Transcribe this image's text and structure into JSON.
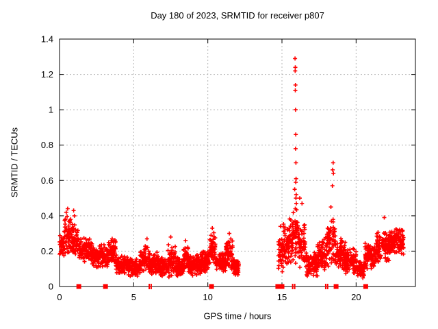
{
  "chart_data": {
    "type": "scatter",
    "title": "Day 180 of 2023, SRMTID for receiver p807",
    "xlabel": "GPS time / hours",
    "ylabel": "SRMTID / TECUs",
    "xlim": [
      0,
      24
    ],
    "ylim": [
      0,
      1.4
    ],
    "xticks": [
      0,
      5,
      10,
      15,
      20
    ],
    "ytick_values": [
      0,
      0.2,
      0.4,
      0.6,
      0.8,
      1,
      1.2,
      1.4
    ],
    "ytick_labels": [
      "0",
      "0.2",
      "0.4",
      "0.6",
      "0.8",
      "1",
      "1.2",
      "1.4"
    ],
    "grid": true,
    "legend": "none",
    "marker": "plus",
    "seed": 180,
    "colors": {
      "points": "#ff0000",
      "grid": "#b4b4b4",
      "axis": "#000000",
      "text": "#000000",
      "background": "#ffffff"
    },
    "series": [
      {
        "name": "SRMTID",
        "band_segments": [
          [
            0.0,
            0.3,
            0.15,
            0.3,
            36
          ],
          [
            0.3,
            0.8,
            0.17,
            0.4,
            60
          ],
          [
            0.8,
            1.3,
            0.16,
            0.36,
            60
          ],
          [
            1.3,
            2.2,
            0.13,
            0.28,
            108
          ],
          [
            2.2,
            3.3,
            0.1,
            0.24,
            132
          ],
          [
            3.3,
            3.8,
            0.12,
            0.27,
            60
          ],
          [
            3.8,
            4.6,
            0.06,
            0.18,
            96
          ],
          [
            4.6,
            5.4,
            0.05,
            0.16,
            96
          ],
          [
            5.4,
            6.1,
            0.07,
            0.24,
            84
          ],
          [
            6.1,
            6.7,
            0.06,
            0.2,
            72
          ],
          [
            6.7,
            7.3,
            0.05,
            0.17,
            72
          ],
          [
            7.3,
            7.8,
            0.04,
            0.25,
            60
          ],
          [
            7.8,
            8.3,
            0.05,
            0.18,
            60
          ],
          [
            8.3,
            8.7,
            0.07,
            0.24,
            48
          ],
          [
            8.7,
            9.6,
            0.06,
            0.19,
            108
          ],
          [
            9.6,
            10.1,
            0.08,
            0.21,
            60
          ],
          [
            10.1,
            10.5,
            0.12,
            0.31,
            48
          ],
          [
            10.5,
            11.2,
            0.07,
            0.2,
            84
          ],
          [
            11.2,
            11.7,
            0.08,
            0.28,
            60
          ],
          [
            11.7,
            12.1,
            0.06,
            0.17,
            48
          ],
          [
            14.75,
            15.1,
            0.05,
            0.3,
            42
          ],
          [
            15.1,
            15.5,
            0.1,
            0.38,
            48
          ],
          [
            15.5,
            16.1,
            0.12,
            0.45,
            72
          ],
          [
            16.1,
            16.6,
            0.1,
            0.38,
            60
          ],
          [
            16.6,
            17.4,
            0.05,
            0.2,
            96
          ],
          [
            17.4,
            18.0,
            0.08,
            0.28,
            72
          ],
          [
            18.0,
            18.6,
            0.1,
            0.42,
            72
          ],
          [
            18.6,
            19.3,
            0.08,
            0.28,
            84
          ],
          [
            19.3,
            20.0,
            0.06,
            0.22,
            84
          ],
          [
            20.0,
            20.6,
            0.04,
            0.16,
            72
          ],
          [
            20.6,
            21.3,
            0.08,
            0.25,
            84
          ],
          [
            21.3,
            22.3,
            0.12,
            0.33,
            120
          ],
          [
            22.3,
            23.2,
            0.17,
            0.34,
            108
          ]
        ],
        "outliers": [
          [
            15.88,
            1.29
          ],
          [
            15.9,
            1.24
          ],
          [
            15.89,
            1.22
          ],
          [
            15.91,
            1.14
          ],
          [
            15.9,
            1.11
          ],
          [
            15.92,
            1.0
          ],
          [
            15.93,
            0.86
          ],
          [
            15.92,
            0.78
          ],
          [
            15.94,
            0.7
          ],
          [
            15.95,
            0.61
          ],
          [
            15.93,
            0.59
          ],
          [
            15.96,
            0.52
          ],
          [
            15.94,
            0.5
          ],
          [
            15.97,
            0.47
          ],
          [
            15.86,
            0.55
          ],
          [
            15.9,
            0.44
          ],
          [
            15.88,
            0.37
          ],
          [
            15.91,
            0.33
          ],
          [
            15.87,
            0.3
          ],
          [
            16.2,
            0.5
          ],
          [
            16.35,
            0.47
          ],
          [
            18.45,
            0.7
          ],
          [
            18.42,
            0.66
          ],
          [
            18.47,
            0.64
          ],
          [
            18.4,
            0.57
          ],
          [
            18.3,
            0.45
          ],
          [
            0.45,
            0.42
          ],
          [
            0.55,
            0.44
          ],
          [
            0.95,
            0.43
          ],
          [
            1.0,
            0.4
          ],
          [
            0.75,
            0.38
          ],
          [
            3.55,
            0.27
          ],
          [
            5.9,
            0.27
          ],
          [
            7.5,
            0.28
          ],
          [
            8.5,
            0.26
          ],
          [
            10.3,
            0.33
          ],
          [
            11.45,
            0.3
          ],
          [
            14.9,
            0.34
          ],
          [
            21.9,
            0.39
          ]
        ],
        "baseline_squares": [
          1.3,
          3.1,
          10.25,
          14.72,
          14.86,
          15.0,
          18.65,
          20.65
        ],
        "baseline_ticks": [
          6.05,
          6.18,
          15.72,
          15.86,
          17.95,
          18.08
        ]
      }
    ]
  }
}
